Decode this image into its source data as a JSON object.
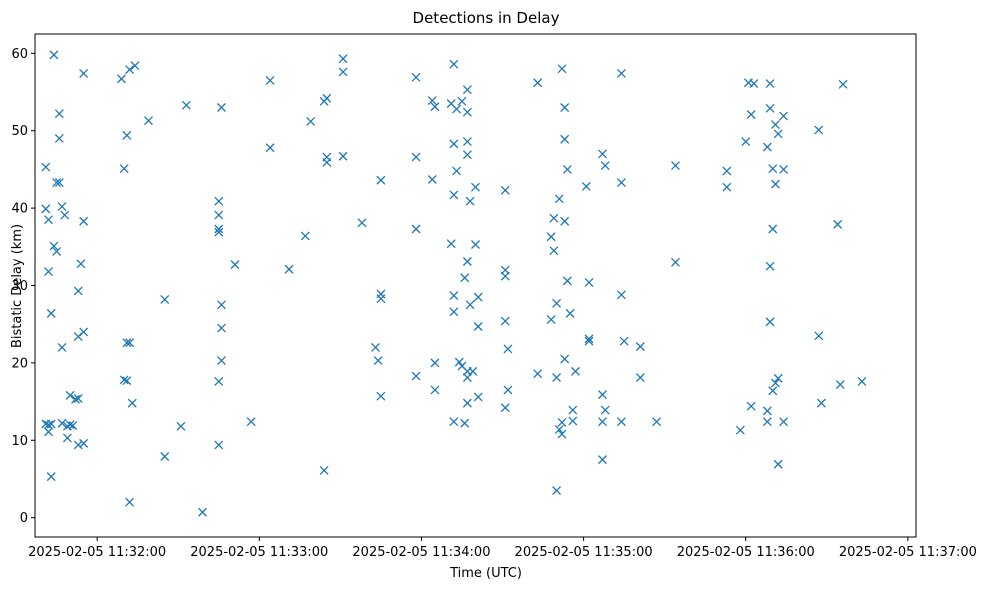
{
  "chart_data": {
    "type": "scatter",
    "title": "Detections in Delay",
    "xlabel": "Time (UTC)",
    "ylabel": "Bistatic Delay (km)",
    "marker": "x",
    "color": "#1f77b4",
    "grid": false,
    "x_ticks": [
      "2025-02-05 11:32:00",
      "2025-02-05 11:33:00",
      "2025-02-05 11:34:00",
      "2025-02-05 11:35:00",
      "2025-02-05 11:36:00",
      "2025-02-05 11:37:00"
    ],
    "y_ticks": [
      0,
      10,
      20,
      30,
      40,
      50,
      60
    ],
    "xlim": [
      "2025-02-05 11:31:37",
      "2025-02-05 11:37:03"
    ],
    "ylim": [
      -2.5,
      62.5
    ],
    "points": [
      [
        "2025-02-05 11:31:41",
        45.3
      ],
      [
        "2025-02-05 11:31:41",
        39.9
      ],
      [
        "2025-02-05 11:31:41",
        12.1
      ],
      [
        "2025-02-05 11:31:42",
        38.5
      ],
      [
        "2025-02-05 11:31:42",
        31.8
      ],
      [
        "2025-02-05 11:31:42",
        12.0
      ],
      [
        "2025-02-05 11:31:42",
        11.1
      ],
      [
        "2025-02-05 11:31:43",
        26.4
      ],
      [
        "2025-02-05 11:31:43",
        12.1
      ],
      [
        "2025-02-05 11:31:43",
        5.3
      ],
      [
        "2025-02-05 11:31:44",
        59.8
      ],
      [
        "2025-02-05 11:31:44",
        35.1
      ],
      [
        "2025-02-05 11:31:45",
        34.4
      ],
      [
        "2025-02-05 11:31:45",
        43.3
      ],
      [
        "2025-02-05 11:31:46",
        43.3
      ],
      [
        "2025-02-05 11:31:46",
        49.0
      ],
      [
        "2025-02-05 11:31:46",
        52.2
      ],
      [
        "2025-02-05 11:31:47",
        40.2
      ],
      [
        "2025-02-05 11:31:47",
        22.0
      ],
      [
        "2025-02-05 11:31:47",
        12.2
      ],
      [
        "2025-02-05 11:31:48",
        39.1
      ],
      [
        "2025-02-05 11:31:49",
        11.8
      ],
      [
        "2025-02-05 11:31:49",
        10.3
      ],
      [
        "2025-02-05 11:31:50",
        15.8
      ],
      [
        "2025-02-05 11:31:50",
        12.0
      ],
      [
        "2025-02-05 11:31:51",
        11.9
      ],
      [
        "2025-02-05 11:31:52",
        15.3
      ],
      [
        "2025-02-05 11:31:53",
        29.3
      ],
      [
        "2025-02-05 11:31:53",
        23.4
      ],
      [
        "2025-02-05 11:31:53",
        15.4
      ],
      [
        "2025-02-05 11:31:53",
        9.4
      ],
      [
        "2025-02-05 11:31:54",
        32.8
      ],
      [
        "2025-02-05 11:31:55",
        57.4
      ],
      [
        "2025-02-05 11:31:55",
        38.3
      ],
      [
        "2025-02-05 11:31:55",
        24.0
      ],
      [
        "2025-02-05 11:31:55",
        9.6
      ],
      [
        "2025-02-05 11:32:09",
        56.7
      ],
      [
        "2025-02-05 11:32:10",
        45.1
      ],
      [
        "2025-02-05 11:32:10",
        17.8
      ],
      [
        "2025-02-05 11:32:11",
        49.4
      ],
      [
        "2025-02-05 11:32:11",
        22.6
      ],
      [
        "2025-02-05 11:32:11",
        17.7
      ],
      [
        "2025-02-05 11:32:12",
        57.9
      ],
      [
        "2025-02-05 11:32:12",
        22.6
      ],
      [
        "2025-02-05 11:32:12",
        2.0
      ],
      [
        "2025-02-05 11:32:13",
        14.8
      ],
      [
        "2025-02-05 11:32:14",
        58.4
      ],
      [
        "2025-02-05 11:32:19",
        51.3
      ],
      [
        "2025-02-05 11:32:25",
        28.2
      ],
      [
        "2025-02-05 11:32:25",
        7.9
      ],
      [
        "2025-02-05 11:32:31",
        11.8
      ],
      [
        "2025-02-05 11:32:33",
        53.3
      ],
      [
        "2025-02-05 11:32:39",
        0.7
      ],
      [
        "2025-02-05 11:32:45",
        40.9
      ],
      [
        "2025-02-05 11:32:45",
        39.1
      ],
      [
        "2025-02-05 11:32:45",
        37.3
      ],
      [
        "2025-02-05 11:32:45",
        36.9
      ],
      [
        "2025-02-05 11:32:45",
        17.6
      ],
      [
        "2025-02-05 11:32:45",
        9.4
      ],
      [
        "2025-02-05 11:32:46",
        53.0
      ],
      [
        "2025-02-05 11:32:46",
        27.5
      ],
      [
        "2025-02-05 11:32:46",
        24.5
      ],
      [
        "2025-02-05 11:32:46",
        20.3
      ],
      [
        "2025-02-05 11:32:51",
        32.7
      ],
      [
        "2025-02-05 11:32:57",
        12.4
      ],
      [
        "2025-02-05 11:33:04",
        56.5
      ],
      [
        "2025-02-05 11:33:04",
        47.8
      ],
      [
        "2025-02-05 11:33:11",
        32.1
      ],
      [
        "2025-02-05 11:33:17",
        36.4
      ],
      [
        "2025-02-05 11:33:19",
        51.2
      ],
      [
        "2025-02-05 11:33:24",
        53.8
      ],
      [
        "2025-02-05 11:33:24",
        6.1
      ],
      [
        "2025-02-05 11:33:25",
        54.2
      ],
      [
        "2025-02-05 11:33:25",
        46.6
      ],
      [
        "2025-02-05 11:33:25",
        45.9
      ],
      [
        "2025-02-05 11:33:31",
        59.3
      ],
      [
        "2025-02-05 11:33:31",
        57.6
      ],
      [
        "2025-02-05 11:33:31",
        46.7
      ],
      [
        "2025-02-05 11:33:38",
        38.1
      ],
      [
        "2025-02-05 11:33:43",
        22.0
      ],
      [
        "2025-02-05 11:33:44",
        20.3
      ],
      [
        "2025-02-05 11:33:45",
        43.6
      ],
      [
        "2025-02-05 11:33:45",
        28.9
      ],
      [
        "2025-02-05 11:33:45",
        28.3
      ],
      [
        "2025-02-05 11:33:45",
        15.7
      ],
      [
        "2025-02-05 11:33:58",
        56.9
      ],
      [
        "2025-02-05 11:33:58",
        46.6
      ],
      [
        "2025-02-05 11:33:58",
        37.3
      ],
      [
        "2025-02-05 11:33:58",
        18.3
      ],
      [
        "2025-02-05 11:34:04",
        53.9
      ],
      [
        "2025-02-05 11:34:04",
        43.7
      ],
      [
        "2025-02-05 11:34:05",
        53.1
      ],
      [
        "2025-02-05 11:34:05",
        20.0
      ],
      [
        "2025-02-05 11:34:05",
        16.5
      ],
      [
        "2025-02-05 11:34:11",
        53.5
      ],
      [
        "2025-02-05 11:34:11",
        35.4
      ],
      [
        "2025-02-05 11:34:12",
        58.6
      ],
      [
        "2025-02-05 11:34:12",
        48.3
      ],
      [
        "2025-02-05 11:34:12",
        41.7
      ],
      [
        "2025-02-05 11:34:12",
        28.7
      ],
      [
        "2025-02-05 11:34:12",
        26.6
      ],
      [
        "2025-02-05 11:34:12",
        12.4
      ],
      [
        "2025-02-05 11:34:13",
        52.8
      ],
      [
        "2025-02-05 11:34:13",
        44.8
      ],
      [
        "2025-02-05 11:34:14",
        20.1
      ],
      [
        "2025-02-05 11:34:15",
        53.8
      ],
      [
        "2025-02-05 11:34:15",
        19.6
      ],
      [
        "2025-02-05 11:34:16",
        31.0
      ],
      [
        "2025-02-05 11:34:16",
        12.2
      ],
      [
        "2025-02-05 11:34:17",
        55.3
      ],
      [
        "2025-02-05 11:34:17",
        52.4
      ],
      [
        "2025-02-05 11:34:17",
        48.6
      ],
      [
        "2025-02-05 11:34:17",
        46.9
      ],
      [
        "2025-02-05 11:34:17",
        33.1
      ],
      [
        "2025-02-05 11:34:17",
        18.9
      ],
      [
        "2025-02-05 11:34:17",
        18.1
      ],
      [
        "2025-02-05 11:34:17",
        14.8
      ],
      [
        "2025-02-05 11:34:18",
        40.9
      ],
      [
        "2025-02-05 11:34:18",
        27.5
      ],
      [
        "2025-02-05 11:34:19",
        18.9
      ],
      [
        "2025-02-05 11:34:20",
        42.7
      ],
      [
        "2025-02-05 11:34:20",
        35.3
      ],
      [
        "2025-02-05 11:34:21",
        28.5
      ],
      [
        "2025-02-05 11:34:21",
        24.7
      ],
      [
        "2025-02-05 11:34:21",
        15.6
      ],
      [
        "2025-02-05 11:34:31",
        42.3
      ],
      [
        "2025-02-05 11:34:31",
        32.0
      ],
      [
        "2025-02-05 11:34:31",
        31.2
      ],
      [
        "2025-02-05 11:34:31",
        25.4
      ],
      [
        "2025-02-05 11:34:31",
        14.2
      ],
      [
        "2025-02-05 11:34:32",
        21.8
      ],
      [
        "2025-02-05 11:34:32",
        16.5
      ],
      [
        "2025-02-05 11:34:43",
        56.2
      ],
      [
        "2025-02-05 11:34:43",
        18.6
      ],
      [
        "2025-02-05 11:34:48",
        36.3
      ],
      [
        "2025-02-05 11:34:48",
        25.6
      ],
      [
        "2025-02-05 11:34:49",
        38.7
      ],
      [
        "2025-02-05 11:34:49",
        34.5
      ],
      [
        "2025-02-05 11:34:50",
        27.7
      ],
      [
        "2025-02-05 11:34:50",
        18.1
      ],
      [
        "2025-02-05 11:34:50",
        3.5
      ],
      [
        "2025-02-05 11:34:51",
        41.2
      ],
      [
        "2025-02-05 11:34:51",
        11.4
      ],
      [
        "2025-02-05 11:34:52",
        58.0
      ],
      [
        "2025-02-05 11:34:52",
        12.3
      ],
      [
        "2025-02-05 11:34:52",
        10.8
      ],
      [
        "2025-02-05 11:34:53",
        53.0
      ],
      [
        "2025-02-05 11:34:53",
        48.9
      ],
      [
        "2025-02-05 11:34:53",
        38.3
      ],
      [
        "2025-02-05 11:34:53",
        20.5
      ],
      [
        "2025-02-05 11:34:54",
        45.0
      ],
      [
        "2025-02-05 11:34:54",
        30.6
      ],
      [
        "2025-02-05 11:34:55",
        26.4
      ],
      [
        "2025-02-05 11:34:56",
        13.9
      ],
      [
        "2025-02-05 11:34:56",
        12.5
      ],
      [
        "2025-02-05 11:34:57",
        18.9
      ],
      [
        "2025-02-05 11:35:01",
        42.8
      ],
      [
        "2025-02-05 11:35:02",
        30.4
      ],
      [
        "2025-02-05 11:35:02",
        23.1
      ],
      [
        "2025-02-05 11:35:02",
        22.8
      ],
      [
        "2025-02-05 11:35:07",
        47.0
      ],
      [
        "2025-02-05 11:35:07",
        15.9
      ],
      [
        "2025-02-05 11:35:07",
        12.4
      ],
      [
        "2025-02-05 11:35:07",
        7.5
      ],
      [
        "2025-02-05 11:35:08",
        45.5
      ],
      [
        "2025-02-05 11:35:08",
        13.9
      ],
      [
        "2025-02-05 11:35:14",
        57.4
      ],
      [
        "2025-02-05 11:35:14",
        43.3
      ],
      [
        "2025-02-05 11:35:14",
        28.8
      ],
      [
        "2025-02-05 11:35:14",
        12.4
      ],
      [
        "2025-02-05 11:35:15",
        22.8
      ],
      [
        "2025-02-05 11:35:21",
        22.1
      ],
      [
        "2025-02-05 11:35:21",
        18.1
      ],
      [
        "2025-02-05 11:35:27",
        12.4
      ],
      [
        "2025-02-05 11:35:34",
        45.5
      ],
      [
        "2025-02-05 11:35:34",
        33.0
      ],
      [
        "2025-02-05 11:35:53",
        44.8
      ],
      [
        "2025-02-05 11:35:53",
        42.7
      ],
      [
        "2025-02-05 11:35:58",
        11.3
      ],
      [
        "2025-02-05 11:36:00",
        48.6
      ],
      [
        "2025-02-05 11:36:01",
        56.2
      ],
      [
        "2025-02-05 11:36:02",
        52.1
      ],
      [
        "2025-02-05 11:36:02",
        14.4
      ],
      [
        "2025-02-05 11:36:03",
        56.1
      ],
      [
        "2025-02-05 11:36:08",
        47.9
      ],
      [
        "2025-02-05 11:36:08",
        13.8
      ],
      [
        "2025-02-05 11:36:08",
        12.4
      ],
      [
        "2025-02-05 11:36:09",
        56.1
      ],
      [
        "2025-02-05 11:36:09",
        52.9
      ],
      [
        "2025-02-05 11:36:09",
        32.5
      ],
      [
        "2025-02-05 11:36:09",
        25.3
      ],
      [
        "2025-02-05 11:36:10",
        45.1
      ],
      [
        "2025-02-05 11:36:10",
        37.3
      ],
      [
        "2025-02-05 11:36:10",
        16.4
      ],
      [
        "2025-02-05 11:36:11",
        50.8
      ],
      [
        "2025-02-05 11:36:11",
        43.1
      ],
      [
        "2025-02-05 11:36:11",
        17.4
      ],
      [
        "2025-02-05 11:36:12",
        49.6
      ],
      [
        "2025-02-05 11:36:12",
        18.0
      ],
      [
        "2025-02-05 11:36:12",
        6.9
      ],
      [
        "2025-02-05 11:36:14",
        51.9
      ],
      [
        "2025-02-05 11:36:14",
        45.0
      ],
      [
        "2025-02-05 11:36:14",
        12.4
      ],
      [
        "2025-02-05 11:36:27",
        50.1
      ],
      [
        "2025-02-05 11:36:27",
        23.5
      ],
      [
        "2025-02-05 11:36:28",
        14.8
      ],
      [
        "2025-02-05 11:36:34",
        37.9
      ],
      [
        "2025-02-05 11:36:35",
        17.2
      ],
      [
        "2025-02-05 11:36:36",
        56.0
      ],
      [
        "2025-02-05 11:36:43",
        17.6
      ]
    ]
  }
}
